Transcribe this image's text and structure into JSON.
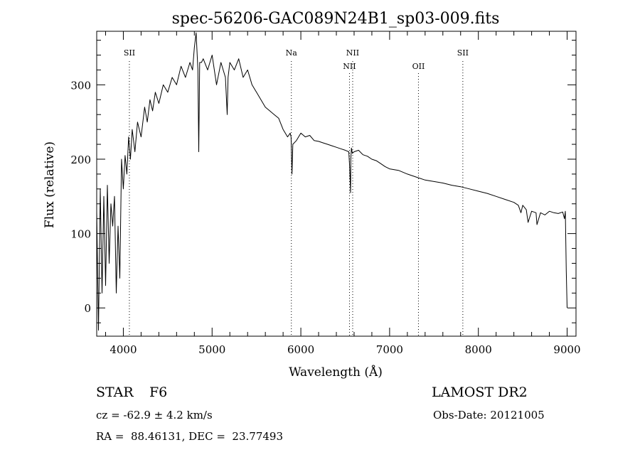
{
  "chart_data": {
    "type": "line",
    "title": "spec-56206-GAC089N24B1_sp03-009.fits",
    "xlabel": "Wavelength (Å)",
    "ylabel": "Flux (relative)",
    "xlim": [
      3700,
      9100
    ],
    "ylim": [
      -38,
      372
    ],
    "x_ticks": [
      4000,
      5000,
      6000,
      7000,
      8000,
      9000
    ],
    "y_ticks": [
      0,
      100,
      200,
      300
    ],
    "grid": false,
    "line_color": "#000000",
    "spectral_lines": [
      {
        "label": "SII",
        "x": 4068,
        "label_row": 1
      },
      {
        "label": "Na",
        "x": 5893,
        "label_row": 1
      },
      {
        "label": "NII",
        "x": 6548,
        "label_row": 2
      },
      {
        "label": "NII",
        "x": 6584,
        "label_row": 1
      },
      {
        "label": "OII",
        "x": 7325,
        "label_row": 2
      },
      {
        "label": "SII",
        "x": 7825,
        "label_row": 1
      }
    ],
    "series": [
      {
        "x": [
          3700,
          3720,
          3740,
          3760,
          3780,
          3800,
          3820,
          3840,
          3860,
          3880,
          3900,
          3920,
          3940,
          3960,
          3980,
          4000,
          4020,
          4040,
          4060,
          4080,
          4100,
          4130,
          4160,
          4200,
          4240,
          4270,
          4300,
          4330,
          4360,
          4400,
          4450,
          4500,
          4550,
          4600,
          4650,
          4700,
          4750,
          4780,
          4800,
          4820,
          4840,
          4850,
          4860,
          4880,
          4900,
          4950,
          5000,
          5050,
          5100,
          5150,
          5170,
          5180,
          5200,
          5250,
          5300,
          5350,
          5400,
          5450,
          5500,
          5550,
          5600,
          5650,
          5700,
          5750,
          5800,
          5850,
          5880,
          5890,
          5900,
          5910,
          5950,
          6000,
          6050,
          6100,
          6150,
          6200,
          6250,
          6300,
          6350,
          6400,
          6450,
          6500,
          6540,
          6550,
          6560,
          6563,
          6570,
          6580,
          6600,
          6650,
          6700,
          6750,
          6800,
          6850,
          6900,
          6950,
          7000,
          7100,
          7200,
          7300,
          7400,
          7500,
          7600,
          7700,
          7800,
          7900,
          8000,
          8100,
          8200,
          8300,
          8400,
          8450,
          8480,
          8500,
          8540,
          8560,
          8600,
          8650,
          8660,
          8700,
          8750,
          8800,
          8850,
          8900,
          8950,
          8970,
          8980,
          8990,
          9000
        ],
        "y": [
          130,
          -30,
          160,
          20,
          150,
          30,
          165,
          60,
          140,
          110,
          150,
          20,
          110,
          40,
          200,
          160,
          205,
          180,
          230,
          200,
          240,
          210,
          250,
          230,
          270,
          250,
          280,
          265,
          290,
          275,
          300,
          290,
          310,
          300,
          325,
          310,
          330,
          320,
          350,
          370,
          320,
          210,
          330,
          330,
          335,
          320,
          340,
          300,
          330,
          310,
          260,
          310,
          330,
          320,
          335,
          310,
          320,
          300,
          290,
          280,
          270,
          265,
          260,
          255,
          240,
          230,
          235,
          230,
          180,
          220,
          225,
          235,
          230,
          232,
          225,
          224,
          222,
          220,
          218,
          216,
          214,
          212,
          210,
          190,
          155,
          200,
          215,
          208,
          210,
          212,
          206,
          204,
          200,
          198,
          194,
          190,
          187,
          185,
          180,
          176,
          172,
          170,
          168,
          165,
          163,
          160,
          157,
          154,
          150,
          146,
          142,
          138,
          128,
          138,
          132,
          115,
          130,
          128,
          112,
          128,
          125,
          130,
          128,
          127,
          129,
          120,
          130,
          50,
          0
        ]
      }
    ]
  },
  "info": {
    "object_class": "STAR",
    "subclass": "F6",
    "survey": "LAMOST DR2",
    "redshift": "cz = -62.9 ± 4.2 km/s",
    "obs_date": "Obs-Date: 20121005",
    "coords": "RA =  88.46131, DEC =  23.77493"
  }
}
